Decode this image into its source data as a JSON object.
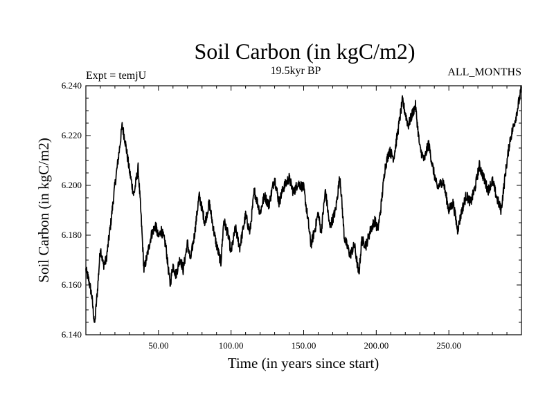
{
  "chart_data": {
    "type": "line",
    "title": "Soil Carbon (in kgC/m2)",
    "subtitle_left": "Expt = temjU",
    "subtitle_center": "19.5kyr BP",
    "subtitle_right": "ALL_MONTHS",
    "xlabel": "Time (in years since start)",
    "ylabel": "Soil Carbon (in kgC/m2)",
    "xlim": [
      0,
      300
    ],
    "ylim": [
      6.14,
      6.24
    ],
    "x_ticks": [
      50,
      100,
      150,
      200,
      250
    ],
    "x_tick_labels": [
      "50.00",
      "100.00",
      "150.00",
      "200.00",
      "250.00"
    ],
    "y_ticks": [
      6.14,
      6.16,
      6.18,
      6.2,
      6.22,
      6.24
    ],
    "y_tick_labels": [
      "6.140",
      "6.160",
      "6.180",
      "6.200",
      "6.220",
      "6.240"
    ],
    "series": [
      {
        "name": "Soil Carbon",
        "x": [
          0,
          2,
          4,
          6,
          8,
          10,
          12,
          14,
          17,
          20,
          23,
          25,
          27,
          30,
          33,
          36,
          38,
          40,
          43,
          45,
          48,
          50,
          52,
          55,
          58,
          60,
          62,
          65,
          67,
          70,
          72,
          75,
          78,
          82,
          85,
          88,
          90,
          93,
          95,
          98,
          100,
          103,
          106,
          110,
          113,
          116,
          120,
          123,
          126,
          130,
          133,
          136,
          140,
          143,
          146,
          150,
          153,
          155,
          158,
          160,
          162,
          165,
          168,
          172,
          175,
          178,
          182,
          185,
          188,
          190,
          193,
          196,
          199,
          201,
          203,
          206,
          209,
          212,
          215,
          218,
          222,
          225,
          227,
          230,
          233,
          236,
          239,
          242,
          246,
          250,
          253,
          256,
          259,
          262,
          265,
          268,
          271,
          274,
          277,
          280,
          283,
          286,
          289,
          292,
          296,
          300
        ],
        "values": [
          6.166,
          6.162,
          6.156,
          6.144,
          6.158,
          6.175,
          6.168,
          6.17,
          6.184,
          6.2,
          6.214,
          6.224,
          6.218,
          6.206,
          6.196,
          6.207,
          6.188,
          6.166,
          6.174,
          6.18,
          6.184,
          6.179,
          6.182,
          6.176,
          6.16,
          6.168,
          6.164,
          6.171,
          6.166,
          6.177,
          6.17,
          6.181,
          6.196,
          6.185,
          6.193,
          6.182,
          6.176,
          6.169,
          6.186,
          6.18,
          6.173,
          6.183,
          6.175,
          6.188,
          6.181,
          6.198,
          6.189,
          6.196,
          6.192,
          6.203,
          6.193,
          6.199,
          6.203,
          6.197,
          6.201,
          6.199,
          6.186,
          6.176,
          6.183,
          6.189,
          6.181,
          6.198,
          6.183,
          6.19,
          6.204,
          6.179,
          6.172,
          6.176,
          6.164,
          6.178,
          6.176,
          6.182,
          6.186,
          6.182,
          6.19,
          6.207,
          6.214,
          6.211,
          6.222,
          6.234,
          6.224,
          6.229,
          6.232,
          6.215,
          6.21,
          6.217,
          6.207,
          6.199,
          6.202,
          6.19,
          6.193,
          6.182,
          6.19,
          6.196,
          6.193,
          6.199,
          6.208,
          6.203,
          6.198,
          6.202,
          6.195,
          6.19,
          6.205,
          6.218,
          6.227,
          6.239
        ]
      }
    ]
  }
}
